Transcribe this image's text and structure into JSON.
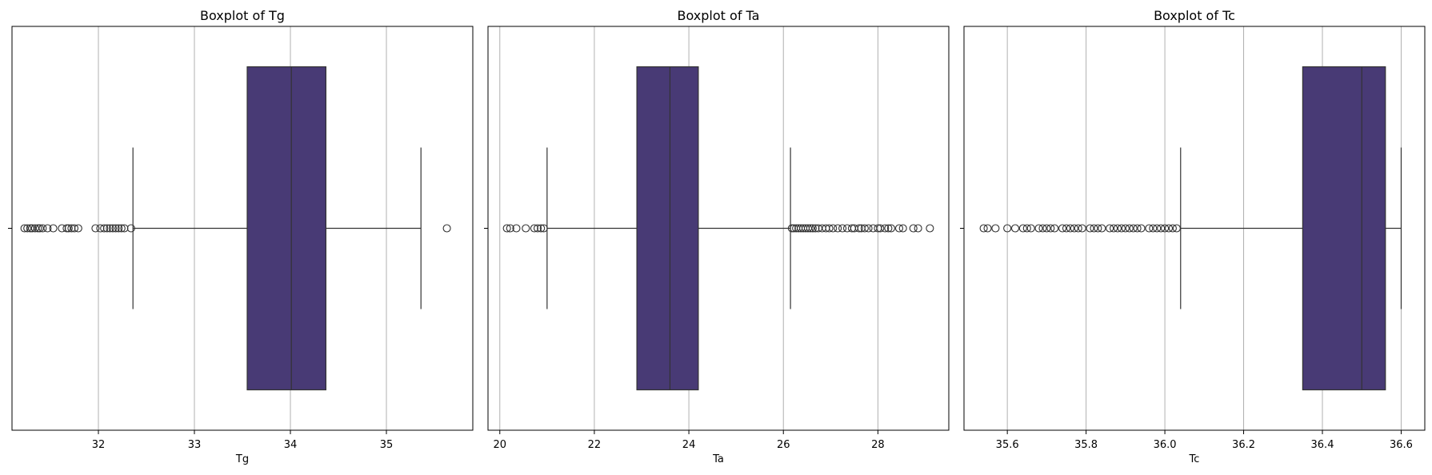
{
  "chart_data": [
    {
      "type": "boxplot",
      "title": "Boxplot of Tg",
      "xlabel": "Tg",
      "xlim": [
        31.1,
        35.9
      ],
      "xticks": [
        32,
        33,
        34,
        35
      ],
      "grid": "vertical",
      "box_color": "#483a75",
      "stats": {
        "whisker_low": 32.36,
        "q1": 33.55,
        "median": 34.01,
        "q3": 34.37,
        "whisker_high": 35.36
      },
      "outliers": [
        31.23,
        31.26,
        31.29,
        31.31,
        31.34,
        31.37,
        31.39,
        31.42,
        31.47,
        31.53,
        31.62,
        31.67,
        31.69,
        31.72,
        31.75,
        31.79,
        31.97,
        32.02,
        32.06,
        32.09,
        32.12,
        32.15,
        32.18,
        32.21,
        32.24,
        32.27,
        32.34,
        35.63
      ]
    },
    {
      "type": "boxplot",
      "title": "Boxplot of Ta",
      "xlabel": "Ta",
      "xlim": [
        19.75,
        29.5
      ],
      "xticks": [
        20,
        22,
        24,
        26,
        28
      ],
      "grid": "vertical",
      "box_color": "#483a75",
      "stats": {
        "whisker_low": 21.0,
        "q1": 22.9,
        "median": 23.6,
        "q3": 24.2,
        "whisker_high": 26.15
      },
      "outliers": [
        20.15,
        20.22,
        20.35,
        20.55,
        20.73,
        20.8,
        20.87,
        20.93,
        26.18,
        26.22,
        26.27,
        26.32,
        26.37,
        26.42,
        26.47,
        26.52,
        26.57,
        26.62,
        26.68,
        26.74,
        26.82,
        26.9,
        26.97,
        27.05,
        27.15,
        27.25,
        27.35,
        27.45,
        27.5,
        27.6,
        27.65,
        27.72,
        27.8,
        27.9,
        28.0,
        28.05,
        28.15,
        28.22,
        28.28,
        28.45,
        28.53,
        28.75,
        28.85,
        29.1
      ]
    },
    {
      "type": "boxplot",
      "title": "Boxplot of Tc",
      "xlabel": "Tc",
      "xlim": [
        35.49,
        36.66
      ],
      "xticks": [
        35.6,
        35.8,
        36.0,
        36.2,
        36.4,
        36.6
      ],
      "xtick_labels": [
        "35.6",
        "35.8",
        "36.0",
        "36.2",
        "36.4",
        "36.6"
      ],
      "grid": "vertical",
      "box_color": "#483a75",
      "stats": {
        "whisker_low": 36.04,
        "q1": 36.35,
        "median": 36.5,
        "q3": 36.56,
        "whisker_high": 36.6
      },
      "outliers": [
        35.54,
        35.55,
        35.57,
        35.6,
        35.62,
        35.64,
        35.65,
        35.66,
        35.68,
        35.69,
        35.7,
        35.71,
        35.72,
        35.74,
        35.75,
        35.76,
        35.77,
        35.78,
        35.79,
        35.81,
        35.82,
        35.83,
        35.84,
        35.86,
        35.87,
        35.88,
        35.89,
        35.9,
        35.91,
        35.92,
        35.93,
        35.94,
        35.96,
        35.97,
        35.98,
        35.99,
        36.0,
        36.01,
        36.02,
        36.03
      ]
    }
  ]
}
